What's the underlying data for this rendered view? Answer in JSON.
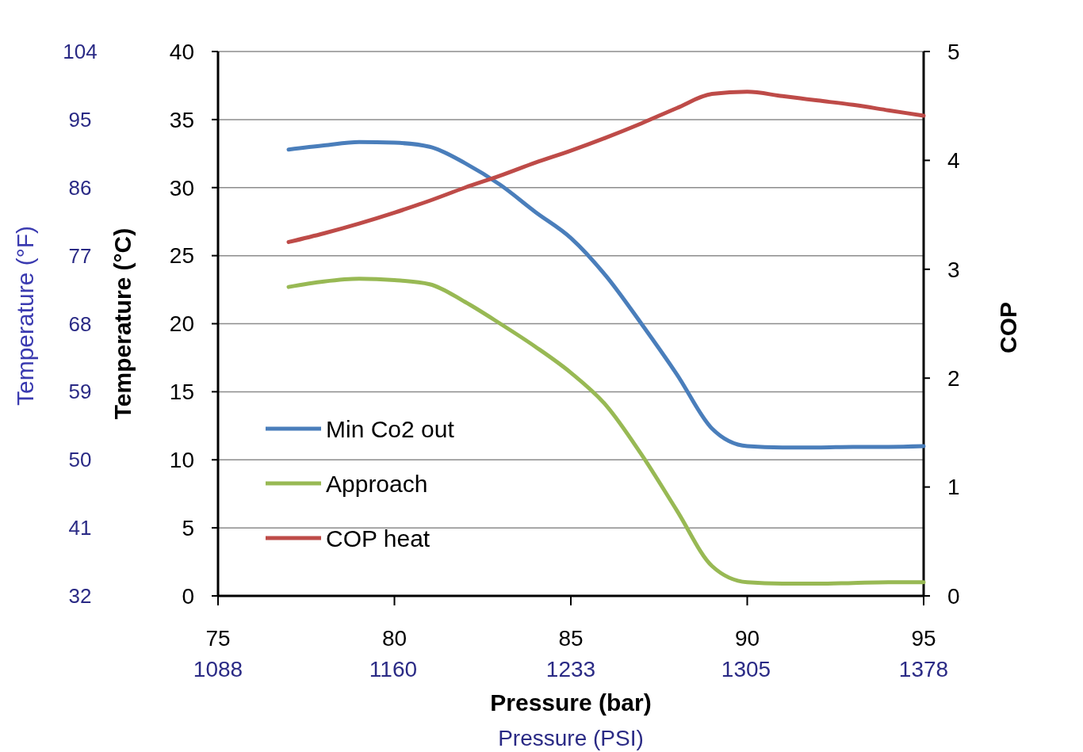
{
  "chart_data": {
    "type": "line",
    "xlabel": "Pressure  (bar)",
    "x2label": "Pressure (PSI)",
    "ylabel": "Temperature (°C)",
    "y2label": "COP",
    "y3label": "Temperature (°F)",
    "xlim": [
      75,
      95
    ],
    "xticks": [
      75,
      80,
      85,
      90,
      95
    ],
    "x2lim": [
      1088,
      1378
    ],
    "x2ticks": [
      1088,
      1160,
      1233,
      1305,
      1378
    ],
    "ylim": [
      0,
      40
    ],
    "yticks": [
      0,
      5,
      10,
      15,
      20,
      25,
      30,
      35,
      40
    ],
    "y2lim": [
      0,
      5
    ],
    "y2ticks": [
      0,
      1,
      2,
      3,
      4,
      5
    ],
    "y3lim": [
      32,
      104
    ],
    "y3ticks": [
      32,
      41,
      50,
      59,
      68,
      77,
      86,
      95,
      104
    ],
    "grid": "y",
    "legend": "bottom left",
    "series": [
      {
        "name": "Min Co2 out",
        "color": "#4a7ebb",
        "x": [
          77,
          78,
          79,
          80,
          81,
          82,
          83,
          84,
          85,
          86,
          87,
          88,
          89,
          90,
          91,
          92,
          93,
          94,
          95
        ],
        "values": [
          32.8,
          33.1,
          33.35,
          33.3,
          33.0,
          31.8,
          30.2,
          28.2,
          26.3,
          23.5,
          20.0,
          16.3,
          12.3,
          11.0,
          10.9,
          10.9,
          10.95,
          10.95,
          11.0
        ]
      },
      {
        "name": "Approach",
        "color": "#98b954",
        "x": [
          77,
          78,
          79,
          80,
          81,
          82,
          83,
          84,
          85,
          86,
          87,
          88,
          89,
          90,
          91,
          92,
          93,
          94,
          95
        ],
        "values": [
          22.7,
          23.1,
          23.3,
          23.2,
          22.9,
          21.6,
          20.0,
          18.3,
          16.4,
          14.0,
          10.4,
          6.3,
          2.2,
          1.0,
          0.9,
          0.9,
          0.95,
          1.0,
          1.0
        ]
      },
      {
        "name": "COP heat",
        "color": "#be4b48",
        "axis": "y2",
        "x": [
          77,
          78,
          79,
          80,
          81,
          82,
          83,
          84,
          85,
          86,
          87,
          88,
          89,
          90,
          91,
          92,
          93,
          94,
          95
        ],
        "values": [
          3.25,
          3.33,
          3.42,
          3.52,
          3.63,
          3.75,
          3.86,
          3.98,
          4.09,
          4.21,
          4.34,
          4.48,
          4.61,
          4.63,
          4.59,
          4.55,
          4.51,
          4.46,
          4.41
        ]
      }
    ]
  }
}
